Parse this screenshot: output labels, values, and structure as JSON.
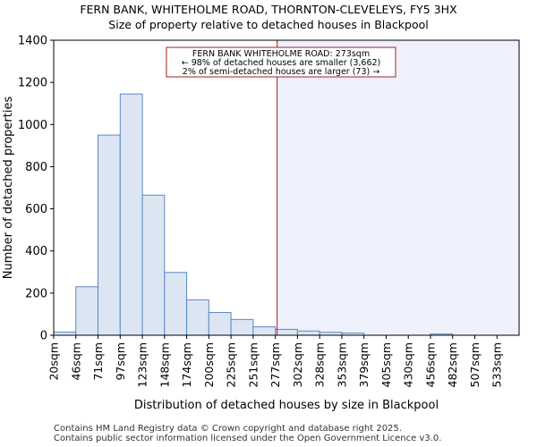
{
  "chart_data": {
    "type": "bar",
    "title": "FERN BANK, WHITEHOLME ROAD, THORNTON-CLEVELEYS, FY5 3HX",
    "subtitle": "Size of property relative to detached houses in Blackpool",
    "xlabel": "Distribution of detached houses by size in Blackpool",
    "ylabel": "Number of detached properties",
    "categories": [
      "20sqm",
      "46sqm",
      "71sqm",
      "97sqm",
      "123sqm",
      "148sqm",
      "174sqm",
      "200sqm",
      "225sqm",
      "251sqm",
      "277sqm",
      "302sqm",
      "328sqm",
      "353sqm",
      "379sqm",
      "405sqm",
      "430sqm",
      "456sqm",
      "482sqm",
      "507sqm",
      "533sqm"
    ],
    "values": [
      15,
      230,
      950,
      1145,
      665,
      298,
      168,
      108,
      75,
      40,
      28,
      20,
      14,
      10,
      0,
      0,
      0,
      6,
      0,
      0,
      0
    ],
    "ylim": [
      0,
      1400
    ],
    "yticks": [
      0,
      200,
      400,
      600,
      800,
      1000,
      1200,
      1400
    ],
    "marker_index": 10,
    "annotation": [
      "FERN BANK WHITEHOLME ROAD: 273sqm",
      "← 98% of detached houses are smaller (3,662)",
      "2% of semi-detached houses are larger (73) →"
    ],
    "colors": {
      "bar_fill": "#dce6f3",
      "bar_stroke": "#5a87c4",
      "highlight_fill": "#eef1fb",
      "marker": "#a02020"
    }
  },
  "footer": {
    "line1": "Contains HM Land Registry data © Crown copyright and database right 2025.",
    "line2": "Contains public sector information licensed under the Open Government Licence v3.0."
  }
}
